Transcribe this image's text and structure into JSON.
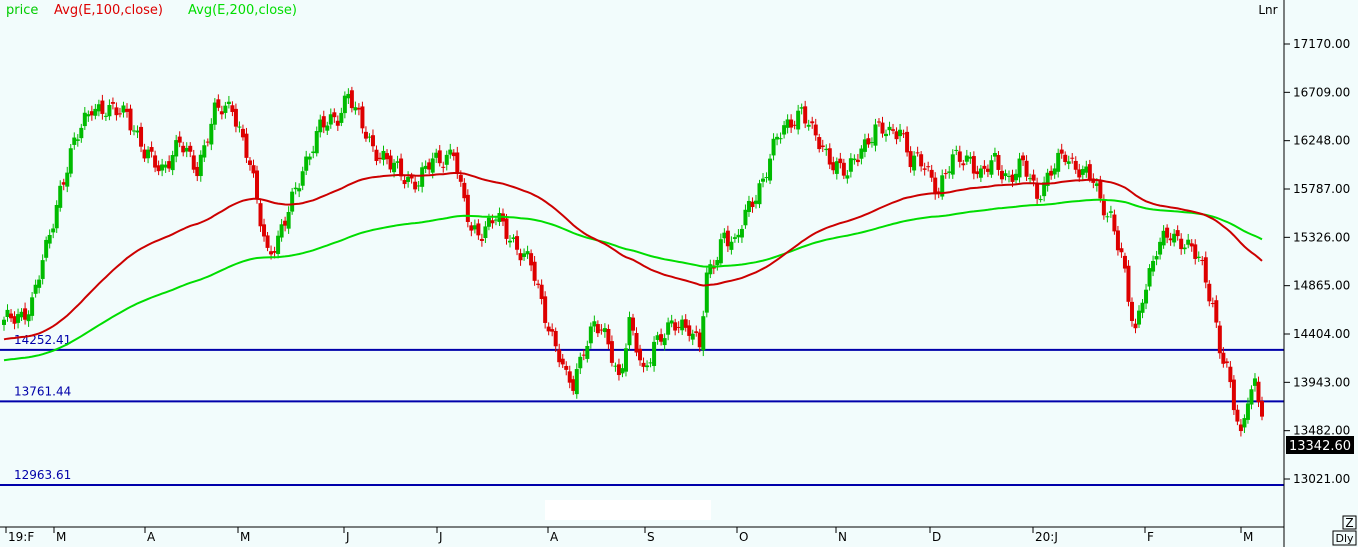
{
  "legend": [
    {
      "label": "price",
      "color": "#00cc00"
    },
    {
      "label": "Avg(E,100,close)",
      "color": "#dd0000"
    },
    {
      "label": "Avg(E,200,close)",
      "color": "#00dd00"
    }
  ],
  "scale_label": "Lnr",
  "last_price_label": "13342.60",
  "buttons": {
    "zoom": "Z",
    "period": "Dly"
  },
  "colors": {
    "background": "#f2fcfc",
    "up": "#00bb00",
    "down": "#dd0000",
    "ema100": "#cc0000",
    "ema200": "#00dd00",
    "hline": "#0000aa"
  },
  "chart_data": {
    "type": "candlestick",
    "y_scale": "linear",
    "y_ticks": [
      17170,
      16709,
      16248,
      15787,
      15326,
      14865,
      14404,
      13943,
      13482,
      13021
    ],
    "y_tick_labels": [
      "17170.00",
      "16709.00",
      "16248.00",
      "15787.00",
      "15326.00",
      "14865.00",
      "14404.00",
      "13943.00",
      "13482.00",
      "13021.00"
    ],
    "ylim": [
      12720,
      17550
    ],
    "x_labels": [
      "19:F",
      "M",
      "A",
      "M",
      "J",
      "J",
      "A",
      "S",
      "O",
      "N",
      "D",
      "20:J",
      "F",
      "M"
    ],
    "horizontal_lines": [
      {
        "value": 14252.41,
        "label": "14252.41"
      },
      {
        "value": 13761.44,
        "label": "13761.44"
      },
      {
        "value": 12963.61,
        "label": "12963.61"
      }
    ],
    "price_keypoints": [
      [
        0,
        14500
      ],
      [
        5,
        14600
      ],
      [
        8,
        14700
      ],
      [
        12,
        15200
      ],
      [
        16,
        15800
      ],
      [
        20,
        16200
      ],
      [
        25,
        16600
      ],
      [
        30,
        16500
      ],
      [
        35,
        16550
      ],
      [
        40,
        16100
      ],
      [
        45,
        16000
      ],
      [
        50,
        16200
      ],
      [
        55,
        16000
      ],
      [
        60,
        16500
      ],
      [
        65,
        16600
      ],
      [
        70,
        16000
      ],
      [
        72,
        15650
      ],
      [
        75,
        15200
      ],
      [
        78,
        15300
      ],
      [
        80,
        15450
      ],
      [
        85,
        16000
      ],
      [
        90,
        16350
      ],
      [
        95,
        16500
      ],
      [
        98,
        16700
      ],
      [
        100,
        16500
      ],
      [
        105,
        16200
      ],
      [
        110,
        16000
      ],
      [
        115,
        15900
      ],
      [
        118,
        15850
      ],
      [
        122,
        16050
      ],
      [
        128,
        16150
      ],
      [
        130,
        15750
      ],
      [
        133,
        15400
      ],
      [
        136,
        15400
      ],
      [
        140,
        15500
      ],
      [
        145,
        15300
      ],
      [
        150,
        15050
      ],
      [
        152,
        14800
      ],
      [
        155,
        14500
      ],
      [
        158,
        14200
      ],
      [
        160,
        13950
      ],
      [
        162,
        13900
      ],
      [
        165,
        14300
      ],
      [
        168,
        14500
      ],
      [
        172,
        14300
      ],
      [
        175,
        14000
      ],
      [
        178,
        14500
      ],
      [
        182,
        14000
      ],
      [
        185,
        14350
      ],
      [
        190,
        14450
      ],
      [
        195,
        14500
      ],
      [
        198,
        14300
      ],
      [
        200,
        14900
      ],
      [
        203,
        15150
      ],
      [
        205,
        15400
      ],
      [
        208,
        15250
      ],
      [
        212,
        15600
      ],
      [
        216,
        15900
      ],
      [
        220,
        16250
      ],
      [
        224,
        16450
      ],
      [
        227,
        16550
      ],
      [
        230,
        16300
      ],
      [
        235,
        16100
      ],
      [
        240,
        15900
      ],
      [
        244,
        16200
      ],
      [
        248,
        16350
      ],
      [
        252,
        16300
      ],
      [
        255,
        16400
      ],
      [
        258,
        16050
      ],
      [
        262,
        16000
      ],
      [
        266,
        15800
      ],
      [
        270,
        16050
      ],
      [
        275,
        16100
      ],
      [
        278,
        15900
      ],
      [
        282,
        16050
      ],
      [
        286,
        15900
      ],
      [
        290,
        16000
      ],
      [
        294,
        15750
      ],
      [
        298,
        15950
      ],
      [
        302,
        16100
      ],
      [
        306,
        16000
      ],
      [
        310,
        15850
      ],
      [
        312,
        15650
      ],
      [
        315,
        15550
      ],
      [
        318,
        15150
      ],
      [
        320,
        14700
      ],
      [
        322,
        14400
      ],
      [
        324,
        14800
      ],
      [
        328,
        15200
      ],
      [
        332,
        15350
      ],
      [
        336,
        15300
      ],
      [
        340,
        15100
      ],
      [
        342,
        14900
      ],
      [
        344,
        14700
      ],
      [
        346,
        14300
      ],
      [
        348,
        14050
      ],
      [
        350,
        13700
      ],
      [
        352,
        13400
      ],
      [
        354,
        13850
      ],
      [
        356,
        13950
      ],
      [
        358,
        13650
      ]
    ]
  }
}
